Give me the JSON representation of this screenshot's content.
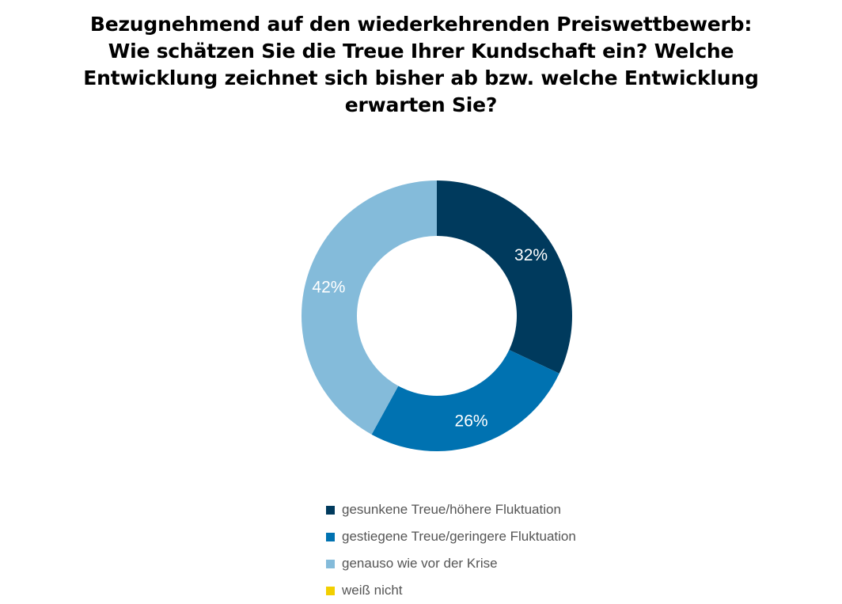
{
  "title_lines": [
    "Bezugnehmend auf den wiederkehrenden Preiswettbewerb:",
    "Wie schätzen Sie die Treue Ihrer Kundschaft ein? Welche",
    "Entwicklung zeichnet sich bisher ab bzw. welche Entwicklung",
    "erwarten Sie?"
  ],
  "chart_data": {
    "type": "pie",
    "donut": true,
    "title": "Bezugnehmend auf den wiederkehrenden Preiswettbewerb: Wie schätzen Sie die Treue Ihrer Kundschaft ein? Welche Entwicklung zeichnet sich bisher ab bzw. welche Entwicklung erwarten Sie?",
    "unit": "%",
    "legend_position": "bottom",
    "slices": [
      {
        "name": "gesunkene Treue/höhere Fluktuation",
        "value": 32,
        "label": "32%",
        "color": "#003a5d",
        "label_color": "#ffffff"
      },
      {
        "name": "gestiegene Treue/geringere Fluktuation",
        "value": 26,
        "label": "26%",
        "color": "#0072b1",
        "label_color": "#ffffff"
      },
      {
        "name": "genauso wie vor der Krise",
        "value": 42,
        "label": "42%",
        "color": "#84bbda",
        "label_color": "#ffffff"
      },
      {
        "name": "weiß nicht",
        "value": 0,
        "label": "",
        "color": "#f2cf00",
        "label_color": "#ffffff"
      }
    ]
  }
}
